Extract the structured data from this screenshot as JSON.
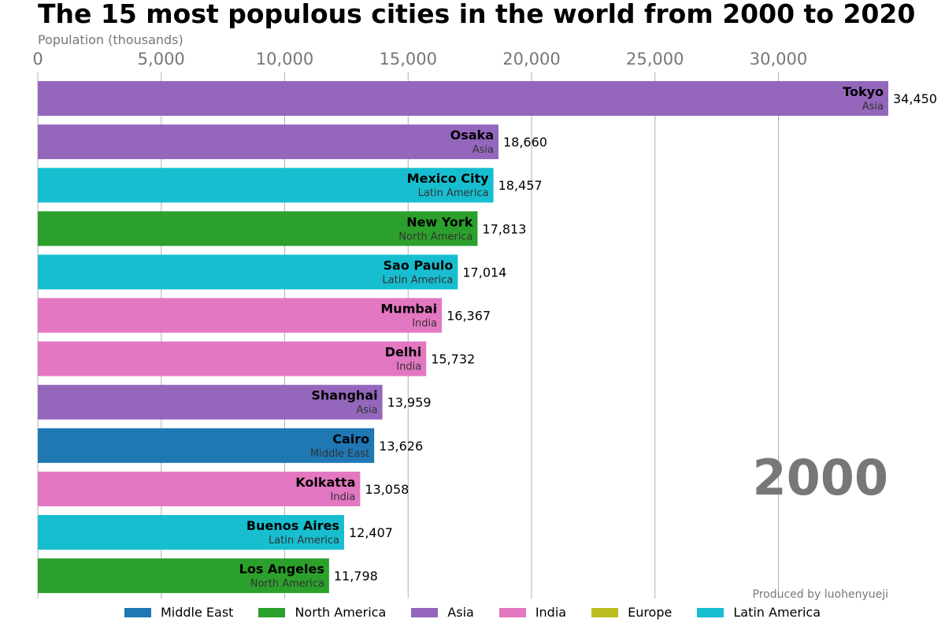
{
  "chart_data": {
    "type": "bar",
    "orientation": "horizontal",
    "title": "The 15 most populous cities in the world from 2000 to 2020",
    "xlabel": "Population (thousands)",
    "ylabel": "",
    "xlim": [
      0,
      34450
    ],
    "xticks": [
      0,
      5000,
      10000,
      15000,
      20000,
      25000,
      30000
    ],
    "xtick_labels": [
      "0",
      "5,000",
      "10,000",
      "15,000",
      "20,000",
      "25,000",
      "30,000"
    ],
    "grid": "vertical",
    "year": "2000",
    "credit": "Produced by luohenyueji",
    "bars": [
      {
        "city": "Tokyo",
        "region": "Asia",
        "value": 34450,
        "value_label": "34,450"
      },
      {
        "city": "Osaka",
        "region": "Asia",
        "value": 18660,
        "value_label": "18,660"
      },
      {
        "city": "Mexico City",
        "region": "Latin America",
        "value": 18457,
        "value_label": "18,457"
      },
      {
        "city": "New York",
        "region": "North America",
        "value": 17813,
        "value_label": "17,813"
      },
      {
        "city": "Sao Paulo",
        "region": "Latin America",
        "value": 17014,
        "value_label": "17,014"
      },
      {
        "city": "Mumbai",
        "region": "India",
        "value": 16367,
        "value_label": "16,367"
      },
      {
        "city": "Delhi",
        "region": "India",
        "value": 15732,
        "value_label": "15,732"
      },
      {
        "city": "Shanghai",
        "region": "Asia",
        "value": 13959,
        "value_label": "13,959"
      },
      {
        "city": "Cairo",
        "region": "Middle East",
        "value": 13626,
        "value_label": "13,626"
      },
      {
        "city": "Kolkatta",
        "region": "India",
        "value": 13058,
        "value_label": "13,058"
      },
      {
        "city": "Buenos Aires",
        "region": "Latin America",
        "value": 12407,
        "value_label": "12,407"
      },
      {
        "city": "Los Angeles",
        "region": "North America",
        "value": 11798,
        "value_label": "11,798"
      }
    ],
    "legend": [
      {
        "label": "Middle East",
        "color": "#1f77b4"
      },
      {
        "label": "North America",
        "color": "#2ca02c"
      },
      {
        "label": "Asia",
        "color": "#9467bd"
      },
      {
        "label": "India",
        "color": "#e377c2"
      },
      {
        "label": "Europe",
        "color": "#bcbd22"
      },
      {
        "label": "Latin America",
        "color": "#17becf"
      }
    ]
  }
}
